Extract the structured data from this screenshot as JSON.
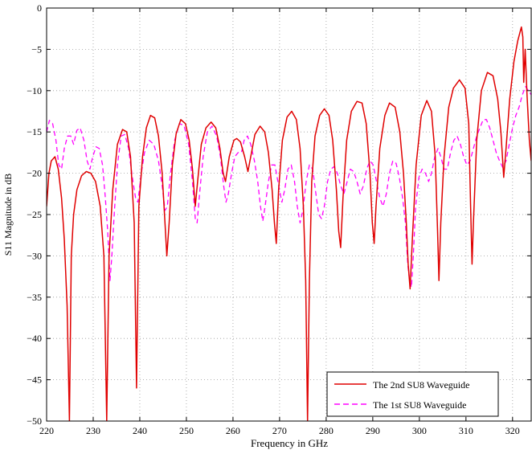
{
  "chart_data": {
    "type": "line",
    "xlabel": "Frequency in GHz",
    "ylabel": "S11 Magnitude in dB",
    "xlim": [
      220,
      324
    ],
    "ylim": [
      -50,
      0
    ],
    "xticks": [
      220,
      230,
      240,
      250,
      260,
      270,
      280,
      290,
      300,
      310,
      320
    ],
    "yticks": [
      0,
      -5,
      -10,
      -15,
      -20,
      -25,
      -30,
      -35,
      -40,
      -45,
      -50
    ],
    "xtick_labels": [
      "220",
      "230",
      "240",
      "250",
      "260",
      "270",
      "280",
      "290",
      "300",
      "310",
      "320"
    ],
    "ytick_labels": [
      "0",
      "−5",
      "−10",
      "−15",
      "−20",
      "−25",
      "−30",
      "−35",
      "−40",
      "−45",
      "−50"
    ],
    "grid": true,
    "legend_position": "bottom-right",
    "series": [
      {
        "name": "The 2nd SU8 Waveguide",
        "color": "#e00000",
        "dash": "solid",
        "points": [
          [
            220,
            -24
          ],
          [
            220.5,
            -20
          ],
          [
            221,
            -18.5
          ],
          [
            221.8,
            -18
          ],
          [
            222.5,
            -19.5
          ],
          [
            223.2,
            -23
          ],
          [
            223.8,
            -28
          ],
          [
            224.4,
            -36
          ],
          [
            224.9,
            -50
          ],
          [
            225.3,
            -30
          ],
          [
            225.8,
            -25
          ],
          [
            226.5,
            -22
          ],
          [
            227.5,
            -20.3
          ],
          [
            228.5,
            -19.8
          ],
          [
            229.5,
            -20
          ],
          [
            230.5,
            -21
          ],
          [
            231.5,
            -24
          ],
          [
            232.3,
            -30
          ],
          [
            232.9,
            -50
          ],
          [
            233.4,
            -30
          ],
          [
            234.2,
            -22
          ],
          [
            235.2,
            -16.5
          ],
          [
            236.3,
            -14.7
          ],
          [
            237.2,
            -15
          ],
          [
            238,
            -18
          ],
          [
            238.8,
            -26
          ],
          [
            239.3,
            -46
          ],
          [
            239.8,
            -24
          ],
          [
            240.6,
            -18
          ],
          [
            241.4,
            -14.5
          ],
          [
            242.3,
            -13
          ],
          [
            243.2,
            -13.3
          ],
          [
            244,
            -15.5
          ],
          [
            244.8,
            -20
          ],
          [
            245.4,
            -26
          ],
          [
            245.8,
            -30
          ],
          [
            246.3,
            -26
          ],
          [
            247,
            -19
          ],
          [
            247.8,
            -15.2
          ],
          [
            248.8,
            -13.5
          ],
          [
            249.8,
            -14
          ],
          [
            250.6,
            -16
          ],
          [
            251.3,
            -19.5
          ],
          [
            251.9,
            -24
          ],
          [
            252.4,
            -21
          ],
          [
            253.2,
            -16.5
          ],
          [
            254.2,
            -14.5
          ],
          [
            255.3,
            -13.8
          ],
          [
            256.3,
            -14.5
          ],
          [
            257.2,
            -17
          ],
          [
            257.9,
            -20
          ],
          [
            258.4,
            -21
          ],
          [
            259.2,
            -18
          ],
          [
            260.2,
            -16
          ],
          [
            260.8,
            -15.8
          ],
          [
            261.6,
            -16.2
          ],
          [
            262.5,
            -18
          ],
          [
            263.2,
            -19.8
          ],
          [
            263.8,
            -18
          ],
          [
            264.7,
            -15.3
          ],
          [
            265.8,
            -14.3
          ],
          [
            266.8,
            -15
          ],
          [
            267.6,
            -17.5
          ],
          [
            268.4,
            -22
          ],
          [
            268.9,
            -26
          ],
          [
            269.3,
            -28.5
          ],
          [
            269.8,
            -22
          ],
          [
            270.6,
            -16
          ],
          [
            271.6,
            -13.2
          ],
          [
            272.6,
            -12.5
          ],
          [
            273.6,
            -13.5
          ],
          [
            274.4,
            -17
          ],
          [
            275.1,
            -24
          ],
          [
            275.6,
            -33
          ],
          [
            276,
            -50
          ],
          [
            276.4,
            -33
          ],
          [
            276.9,
            -21
          ],
          [
            277.6,
            -15.5
          ],
          [
            278.6,
            -13
          ],
          [
            279.6,
            -12.2
          ],
          [
            280.6,
            -13
          ],
          [
            281.4,
            -16
          ],
          [
            282.2,
            -22
          ],
          [
            282.7,
            -27
          ],
          [
            283.1,
            -29
          ],
          [
            283.6,
            -23
          ],
          [
            284.4,
            -16
          ],
          [
            285.4,
            -12.5
          ],
          [
            286.6,
            -11.3
          ],
          [
            287.7,
            -11.5
          ],
          [
            288.6,
            -14
          ],
          [
            289.4,
            -20
          ],
          [
            289.9,
            -26
          ],
          [
            290.3,
            -28.5
          ],
          [
            290.7,
            -24
          ],
          [
            291.5,
            -17
          ],
          [
            292.6,
            -13
          ],
          [
            293.6,
            -11.5
          ],
          [
            294.8,
            -12
          ],
          [
            295.8,
            -15
          ],
          [
            296.6,
            -20
          ],
          [
            297.2,
            -26
          ],
          [
            297.6,
            -31
          ],
          [
            298,
            -34
          ],
          [
            298.5,
            -28
          ],
          [
            299.3,
            -19
          ],
          [
            300.4,
            -13
          ],
          [
            301.6,
            -11.2
          ],
          [
            302.6,
            -12.5
          ],
          [
            303.4,
            -18
          ],
          [
            303.9,
            -27
          ],
          [
            304.2,
            -33
          ],
          [
            304.6,
            -26
          ],
          [
            305.3,
            -18
          ],
          [
            306.3,
            -12
          ],
          [
            307.3,
            -9.7
          ],
          [
            308.6,
            -8.7
          ],
          [
            309.8,
            -9.7
          ],
          [
            310.6,
            -14
          ],
          [
            311,
            -24
          ],
          [
            311.3,
            -31
          ],
          [
            311.6,
            -26
          ],
          [
            312.3,
            -16
          ],
          [
            313.3,
            -10
          ],
          [
            314.6,
            -7.8
          ],
          [
            315.8,
            -8.2
          ],
          [
            316.8,
            -11
          ],
          [
            317.5,
            -15
          ],
          [
            318.1,
            -20.5
          ],
          [
            318.6,
            -17
          ],
          [
            319.4,
            -11
          ],
          [
            320.3,
            -6.5
          ],
          [
            321.1,
            -4
          ],
          [
            321.9,
            -2.3
          ],
          [
            322.2,
            -3.5
          ],
          [
            322.4,
            -9
          ],
          [
            322.7,
            -5
          ],
          [
            323.1,
            -10.5
          ],
          [
            323.6,
            -16
          ],
          [
            324,
            -18.5
          ]
        ]
      },
      {
        "name": "The 1st SU8 Waveguide",
        "color": "#ff00ff",
        "dash": "dashed",
        "points": [
          [
            220,
            -15
          ],
          [
            220.6,
            -13.6
          ],
          [
            221.3,
            -14
          ],
          [
            222,
            -16
          ],
          [
            222.6,
            -19
          ],
          [
            223.2,
            -19.5
          ],
          [
            223.8,
            -17
          ],
          [
            224.5,
            -15.5
          ],
          [
            225.2,
            -15.5
          ],
          [
            225.8,
            -16.5
          ],
          [
            226.5,
            -14.8
          ],
          [
            227.2,
            -14.5
          ],
          [
            228,
            -16
          ],
          [
            228.7,
            -18.5
          ],
          [
            229.3,
            -19.5
          ],
          [
            229.9,
            -18
          ],
          [
            230.6,
            -16.8
          ],
          [
            231.3,
            -17
          ],
          [
            232,
            -19
          ],
          [
            232.6,
            -23
          ],
          [
            233.1,
            -27
          ],
          [
            233.6,
            -33
          ],
          [
            234,
            -30
          ],
          [
            234.5,
            -25
          ],
          [
            235.2,
            -19
          ],
          [
            236,
            -15.5
          ],
          [
            236.8,
            -15.3
          ],
          [
            237.6,
            -17
          ],
          [
            238.4,
            -20.5
          ],
          [
            239.1,
            -23
          ],
          [
            239.6,
            -23.5
          ],
          [
            240.2,
            -20.5
          ],
          [
            241,
            -17.5
          ],
          [
            242,
            -16
          ],
          [
            243,
            -16.5
          ],
          [
            244,
            -18.5
          ],
          [
            244.8,
            -21.5
          ],
          [
            245.4,
            -24.5
          ],
          [
            245.9,
            -24
          ],
          [
            246.6,
            -20
          ],
          [
            247.5,
            -16
          ],
          [
            248.5,
            -14
          ],
          [
            249.5,
            -14.2
          ],
          [
            250.5,
            -16.5
          ],
          [
            251.3,
            -21
          ],
          [
            251.9,
            -25.5
          ],
          [
            252.3,
            -26
          ],
          [
            252.9,
            -22
          ],
          [
            253.6,
            -18
          ],
          [
            254.5,
            -15
          ],
          [
            255.5,
            -14.3
          ],
          [
            256.5,
            -15.5
          ],
          [
            257.3,
            -18
          ],
          [
            258,
            -21.5
          ],
          [
            258.5,
            -23.5
          ],
          [
            259,
            -22.5
          ],
          [
            259.7,
            -20
          ],
          [
            260.4,
            -18
          ],
          [
            261.1,
            -17.5
          ],
          [
            261.8,
            -17.5
          ],
          [
            262.4,
            -16
          ],
          [
            263.1,
            -15.5
          ],
          [
            263.8,
            -16.5
          ],
          [
            264.6,
            -18.5
          ],
          [
            265.3,
            -21
          ],
          [
            265.9,
            -24
          ],
          [
            266.4,
            -25.8
          ],
          [
            266.9,
            -24
          ],
          [
            267.6,
            -21
          ],
          [
            268.3,
            -19
          ],
          [
            269,
            -19
          ],
          [
            269.8,
            -21.5
          ],
          [
            270.5,
            -23.5
          ],
          [
            271.1,
            -22
          ],
          [
            271.8,
            -19.5
          ],
          [
            272.5,
            -19
          ],
          [
            273.2,
            -21
          ],
          [
            273.8,
            -24
          ],
          [
            274.4,
            -26
          ],
          [
            275,
            -24.5
          ],
          [
            275.7,
            -21
          ],
          [
            276.4,
            -19
          ],
          [
            277.1,
            -19.5
          ],
          [
            277.8,
            -22.5
          ],
          [
            278.4,
            -25
          ],
          [
            279,
            -25.5
          ],
          [
            279.6,
            -24
          ],
          [
            280.3,
            -21
          ],
          [
            281,
            -19.5
          ],
          [
            281.7,
            -19.2
          ],
          [
            282.4,
            -20
          ],
          [
            283.1,
            -21.5
          ],
          [
            283.8,
            -22.5
          ],
          [
            284.5,
            -21
          ],
          [
            285.2,
            -19.5
          ],
          [
            285.9,
            -19.8
          ],
          [
            286.6,
            -21
          ],
          [
            287.3,
            -22.5
          ],
          [
            288,
            -21.5
          ],
          [
            288.7,
            -19.5
          ],
          [
            289.4,
            -18.5
          ],
          [
            290.1,
            -19
          ],
          [
            290.8,
            -21
          ],
          [
            291.5,
            -23
          ],
          [
            292.2,
            -24
          ],
          [
            292.9,
            -22.5
          ],
          [
            293.6,
            -20
          ],
          [
            294.3,
            -18.5
          ],
          [
            295,
            -18.8
          ],
          [
            295.7,
            -20.5
          ],
          [
            296.4,
            -23
          ],
          [
            297,
            -26
          ],
          [
            297.5,
            -31
          ],
          [
            297.9,
            -33
          ],
          [
            298.3,
            -33.8
          ],
          [
            298.7,
            -30
          ],
          [
            299.2,
            -24
          ],
          [
            299.9,
            -20.5
          ],
          [
            300.6,
            -19.5
          ],
          [
            301.3,
            -20
          ],
          [
            302,
            -21
          ],
          [
            302.6,
            -20
          ],
          [
            303.3,
            -18
          ],
          [
            304,
            -17
          ],
          [
            304.6,
            -18
          ],
          [
            305.3,
            -19.5
          ],
          [
            306,
            -19.5
          ],
          [
            306.7,
            -17.5
          ],
          [
            307.4,
            -16
          ],
          [
            308.1,
            -15.5
          ],
          [
            308.8,
            -16.5
          ],
          [
            309.5,
            -18
          ],
          [
            310.2,
            -19
          ],
          [
            310.9,
            -18.5
          ],
          [
            311.6,
            -17
          ],
          [
            312.3,
            -15.5
          ],
          [
            313,
            -14.5
          ],
          [
            313.7,
            -13.5
          ],
          [
            314.4,
            -13.5
          ],
          [
            315.1,
            -14.5
          ],
          [
            315.8,
            -16
          ],
          [
            316.5,
            -17.5
          ],
          [
            317.2,
            -18.5
          ],
          [
            317.9,
            -19.3
          ],
          [
            318.6,
            -18.5
          ],
          [
            319.3,
            -16.5
          ],
          [
            320,
            -14.5
          ],
          [
            320.7,
            -13
          ],
          [
            321.4,
            -12
          ],
          [
            322.1,
            -10.5
          ],
          [
            322.8,
            -9.5
          ],
          [
            323.4,
            -10
          ],
          [
            324,
            -10.5
          ]
        ]
      }
    ]
  }
}
